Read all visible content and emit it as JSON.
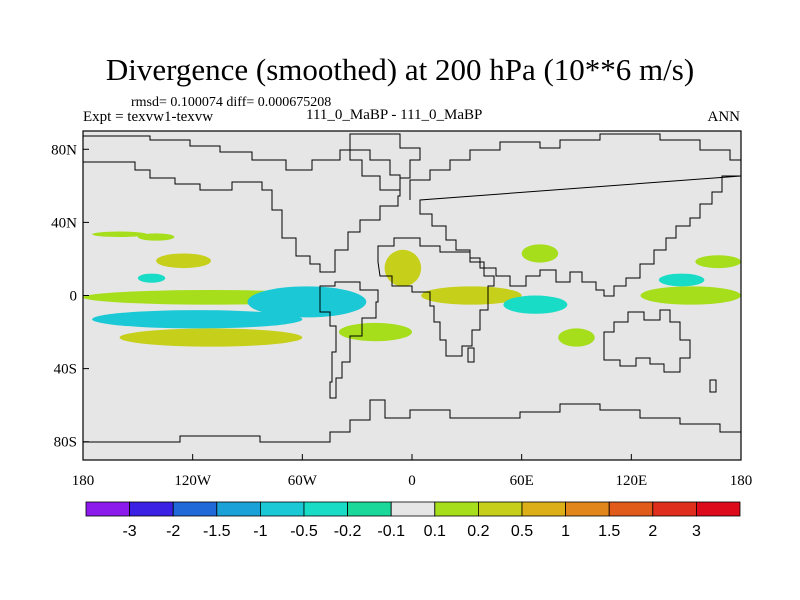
{
  "header": {
    "title": "Divergence (smoothed) at 200 hPa (10**6 m/s)",
    "stats": "rmsd= 0.100074 diff= 0.000675208",
    "experiment": "Expt = texvw1-texvw",
    "case_label": "111_0_MaBP - 111_0_MaBP",
    "season": "ANN"
  },
  "chart_data": {
    "type": "heatmap",
    "title": "Divergence (smoothed) at 200 hPa (10**6 m/s)",
    "projection": "cylindrical-equidistant",
    "xlim": [
      -180,
      180
    ],
    "ylim": [
      -90,
      90
    ],
    "x_ticks": [
      {
        "value": -180,
        "label": "180"
      },
      {
        "value": -120,
        "label": "120W"
      },
      {
        "value": -60,
        "label": "60W"
      },
      {
        "value": 0,
        "label": "0"
      },
      {
        "value": 60,
        "label": "60E"
      },
      {
        "value": 120,
        "label": "120E"
      },
      {
        "value": 180,
        "label": "180"
      }
    ],
    "y_ticks": [
      {
        "value": 80,
        "label": "80N"
      },
      {
        "value": 40,
        "label": "40N"
      },
      {
        "value": 0,
        "label": "0"
      },
      {
        "value": -40,
        "label": "40S"
      },
      {
        "value": -80,
        "label": "80S"
      }
    ],
    "background_color": "#e6e6e6",
    "levels": [
      "-3",
      "-2",
      "-1.5",
      "-1",
      "-0.5",
      "-0.2",
      "-0.1",
      "0.1",
      "0.2",
      "0.5",
      "1",
      "1.5",
      "2",
      "3"
    ],
    "colorbar": [
      "#8c1aed",
      "#3a21e3",
      "#1f6ad8",
      "#1aa2d8",
      "#1bc9d6",
      "#19dcc7",
      "#19d89a",
      "#e6e6e6",
      "#a6de1b",
      "#c6cf1a",
      "#dcae18",
      "#e0861a",
      "#e05a1a",
      "#e02e1c",
      "#dc0a1a"
    ],
    "regions": [
      {
        "name": "warm-band-40N-pacific",
        "lon": [
          -175,
          -145
        ],
        "lat": [
          32,
          35
        ],
        "level": 0.2
      },
      {
        "name": "warm-band-40N-pacific-b",
        "lon": [
          -150,
          -130
        ],
        "lat": [
          30,
          34
        ],
        "level": 0.2
      },
      {
        "name": "warm-subtropic-pacific",
        "lon": [
          -140,
          -110
        ],
        "lat": [
          15,
          23
        ],
        "level": 0.5
      },
      {
        "name": "cool-eq-pacific",
        "lon": [
          -150,
          -135
        ],
        "lat": [
          7,
          12
        ],
        "level": -0.2
      },
      {
        "name": "warm-eq-band",
        "lon": [
          -180,
          -40
        ],
        "lat": [
          -5,
          3
        ],
        "level": 0.2
      },
      {
        "name": "cool-south-band",
        "lon": [
          -175,
          -60
        ],
        "lat": [
          -18,
          -8
        ],
        "level": -0.5
      },
      {
        "name": "warm-south-band",
        "lon": [
          -160,
          -60
        ],
        "lat": [
          -28,
          -18
        ],
        "level": 0.5
      },
      {
        "name": "warm-south-atl",
        "lon": [
          -40,
          0
        ],
        "lat": [
          -25,
          -15
        ],
        "level": 0.2
      },
      {
        "name": "cool-tropic-atl",
        "lon": [
          -90,
          -25
        ],
        "lat": [
          -12,
          5
        ],
        "level": -0.5
      },
      {
        "name": "warm-africa",
        "lon": [
          -15,
          5
        ],
        "lat": [
          5,
          25
        ],
        "level": 0.5
      },
      {
        "name": "warm-south-africa",
        "lon": [
          5,
          60
        ],
        "lat": [
          -5,
          5
        ],
        "level": 0.5
      },
      {
        "name": "cool-indian",
        "lon": [
          50,
          85
        ],
        "lat": [
          -10,
          0
        ],
        "level": -0.2
      },
      {
        "name": "warm-indian",
        "lon": [
          80,
          100
        ],
        "lat": [
          -28,
          -18
        ],
        "level": 0.2
      },
      {
        "name": "warm-maritime",
        "lon": [
          125,
          180
        ],
        "lat": [
          -5,
          5
        ],
        "level": 0.2
      },
      {
        "name": "cool-wpac",
        "lon": [
          135,
          160
        ],
        "lat": [
          5,
          12
        ],
        "level": -0.2
      },
      {
        "name": "warm-npac",
        "lon": [
          155,
          180
        ],
        "lat": [
          15,
          22
        ],
        "level": 0.2
      },
      {
        "name": "warm-asia",
        "lon": [
          60,
          80
        ],
        "lat": [
          18,
          28
        ],
        "level": 0.2
      }
    ]
  }
}
